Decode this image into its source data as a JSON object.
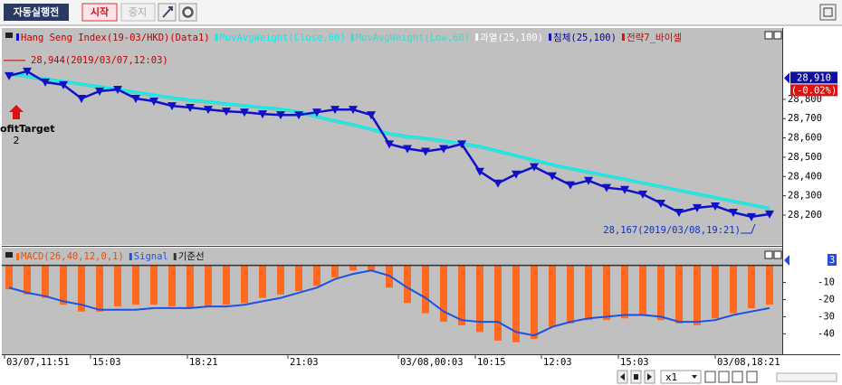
{
  "toolbar": {
    "buttons": [
      "자동실행전",
      "시작",
      "중지"
    ]
  },
  "chart_data": [
    {
      "type": "line",
      "legend_extra": [
        "과열(25,100)",
        "침체(25,100)",
        "전략7_바이셀"
      ],
      "annotations": [
        "28,944(2019/03/07,12:03)",
        "28,167(2019/03/08,19:21)"
      ],
      "signal_label": [
        "ofitTarget",
        "2"
      ],
      "last_price": {
        "value": 28910,
        "label": "28,910"
      },
      "last_change": "(-0.02%)",
      "xlim": [
        -0.5,
        42.5
      ],
      "ylim": [
        28050,
        29160
      ],
      "yticks": [
        {
          "value": 28200,
          "label": "28,200"
        },
        {
          "value": 28300,
          "label": "28,300"
        },
        {
          "value": 28400,
          "label": "28,400"
        },
        {
          "value": 28500,
          "label": "28,500"
        },
        {
          "value": 28600,
          "label": "28,600"
        },
        {
          "value": 28700,
          "label": "28,700"
        },
        {
          "value": 28800,
          "label": "28,800"
        }
      ],
      "series": [
        {
          "name": "Hang Seng Index(19-03/HKD)(Data1)",
          "color": "#1010c8",
          "values": [
            28922,
            28945,
            28889,
            28875,
            28804,
            28842,
            28851,
            28804,
            28790,
            28766,
            28757,
            28747,
            28738,
            28733,
            28724,
            28719,
            28719,
            28733,
            28747,
            28747,
            28719,
            28568,
            28544,
            28530,
            28544,
            28568,
            28426,
            28365,
            28412,
            28450,
            28403,
            28356,
            28379,
            28342,
            28332,
            28308,
            28261,
            28214,
            28238,
            28247,
            28214,
            28191,
            28205
          ]
        },
        {
          "name": "MovAvgWeight(Close,60)",
          "color": "#00f0f0",
          "values": [
            28936,
            28922,
            28908,
            28896,
            28882,
            28868,
            28854,
            28839,
            28825,
            28811,
            28799,
            28790,
            28780,
            28771,
            28761,
            28752,
            28738,
            28714,
            28691,
            28672,
            28648,
            28625,
            28610,
            28601,
            28587,
            28573,
            28558,
            28535,
            28511,
            28488,
            28464,
            28445,
            28426,
            28408,
            28389,
            28370,
            28351,
            28332,
            28313,
            28294,
            28275,
            28257,
            28238
          ]
        },
        {
          "name": "MovAvgWeight(Low,60)",
          "color": "#40d8c8",
          "values": [
            28926,
            28912,
            28898,
            28886,
            28872,
            28858,
            28844,
            28829,
            28815,
            28801,
            28789,
            28780,
            28770,
            28761,
            28751,
            28742,
            28728,
            28704,
            28681,
            28662,
            28638,
            28615,
            28600,
            28591,
            28577,
            28563,
            28548,
            28525,
            28501,
            28478,
            28454,
            28435,
            28416,
            28398,
            28379,
            28360,
            28341,
            28322,
            28303,
            28284,
            28265,
            28247,
            28228
          ]
        }
      ]
    },
    {
      "type": "bar",
      "baseline_name": "기준선",
      "baseline": 0,
      "last_value": 3,
      "xlim": [
        -0.5,
        42.5
      ],
      "ylim": [
        -52,
        3
      ],
      "yticks": [
        -10,
        -20,
        -30,
        -40
      ],
      "xticks": [
        {
          "value": -0.25,
          "label": "03/07,11:51"
        },
        {
          "value": 4.5,
          "label": "15:03"
        },
        {
          "value": 9.85,
          "label": "18:21"
        },
        {
          "value": 15.4,
          "label": "21:03"
        },
        {
          "value": 21.5,
          "label": "03/08,00:03"
        },
        {
          "value": 25.75,
          "label": "10:15"
        },
        {
          "value": 29.4,
          "label": "12:03"
        },
        {
          "value": 33.65,
          "label": "15:03"
        },
        {
          "value": 39,
          "label": "03/08,18:21"
        }
      ],
      "series": [
        {
          "name": "MACD(26,40,12,0,1)",
          "color": "#ff6a20",
          "values": [
            -14,
            -17,
            -19,
            -23,
            -27,
            -27,
            -24,
            -23,
            -23,
            -24,
            -25,
            -24,
            -23,
            -22,
            -19,
            -17,
            -15,
            -12,
            -7,
            -3,
            -3,
            -13,
            -22,
            -28,
            -33,
            -35,
            -39,
            -44,
            -45,
            -43,
            -36,
            -34,
            -32,
            -32,
            -31,
            -29,
            -32,
            -34,
            -35,
            -31,
            -28,
            -25,
            -23
          ]
        },
        {
          "name": "Signal",
          "color": "#2050e0",
          "values": [
            -13,
            -16,
            -18,
            -21,
            -23,
            -26,
            -26,
            -26,
            -25,
            -25,
            -25,
            -24,
            -24,
            -23,
            -21,
            -19,
            -16,
            -13,
            -8,
            -5,
            -3,
            -6,
            -13,
            -19,
            -27,
            -32,
            -33,
            -33,
            -39,
            -41,
            -36,
            -33,
            -31,
            -30,
            -29,
            -29,
            -30,
            -33,
            -33,
            -32,
            -29,
            -27,
            -25
          ]
        }
      ]
    }
  ],
  "zoom": "x1"
}
